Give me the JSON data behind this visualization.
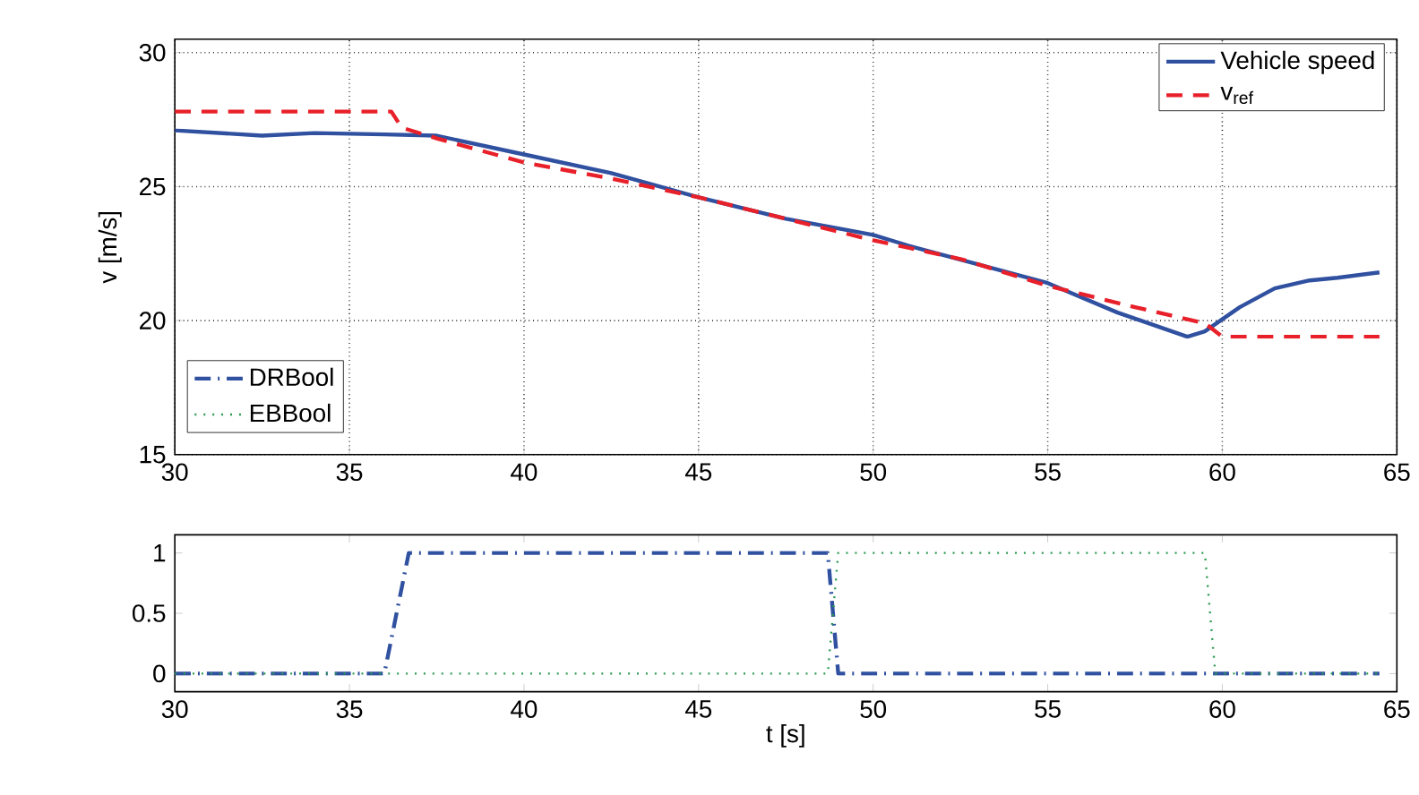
{
  "chart_data": [
    {
      "type": "line",
      "ylabel": "v [m/s]",
      "xlim": [
        30,
        65
      ],
      "ylim": [
        15,
        30.5
      ],
      "xticks": [
        30,
        35,
        40,
        45,
        50,
        55,
        60,
        65
      ],
      "yticks": [
        15,
        20,
        25,
        30
      ],
      "grid": true,
      "legend": "top right",
      "series": [
        {
          "name": "Vehicle speed",
          "color": "#3050a0",
          "line_style": "solid",
          "x": [
            30,
            32.5,
            34,
            36,
            37.5,
            40,
            42.5,
            45,
            47.5,
            50,
            51,
            53,
            55,
            57,
            59,
            59.5,
            60.5,
            61.5,
            62.5,
            63.3,
            64.5
          ],
          "values": [
            27.1,
            26.9,
            27.0,
            26.95,
            26.9,
            26.2,
            25.5,
            24.6,
            23.8,
            23.2,
            22.8,
            22.1,
            21.4,
            20.3,
            19.4,
            19.6,
            20.5,
            21.2,
            21.5,
            21.6,
            21.8
          ]
        },
        {
          "name": "v$_{ref}$",
          "color": "#e8202a",
          "line_style": "dashed",
          "x": [
            30,
            36.2,
            36.5,
            37.5,
            40,
            42.5,
            45,
            47.5,
            50,
            52.5,
            55,
            57.5,
            59.5,
            60,
            64.5
          ],
          "values": [
            27.8,
            27.8,
            27.2,
            26.8,
            25.9,
            25.3,
            24.6,
            23.8,
            23.0,
            22.3,
            21.3,
            20.5,
            19.9,
            19.4,
            19.4
          ]
        }
      ]
    },
    {
      "type": "line",
      "xlabel": "t [s]",
      "xlim": [
        30,
        65
      ],
      "ylim": [
        -0.15,
        1.15
      ],
      "xticks": [
        30,
        35,
        40,
        45,
        50,
        55,
        60,
        65
      ],
      "yticks": [
        0,
        0.5,
        1
      ],
      "grid": false,
      "legend": "top left",
      "series": [
        {
          "name": "DRBool",
          "color": "#3050a0",
          "line_style": "dashdot",
          "x": [
            30,
            36,
            36.7,
            48.7,
            49,
            64.5
          ],
          "values": [
            0,
            0,
            1,
            1,
            0,
            0
          ]
        },
        {
          "name": "EBBool",
          "color": "#2a9a50",
          "line_style": "dotted",
          "x": [
            30,
            48.7,
            49,
            59.5,
            59.8,
            64.5
          ],
          "values": [
            0,
            0,
            1,
            1,
            0,
            0
          ]
        }
      ]
    }
  ]
}
